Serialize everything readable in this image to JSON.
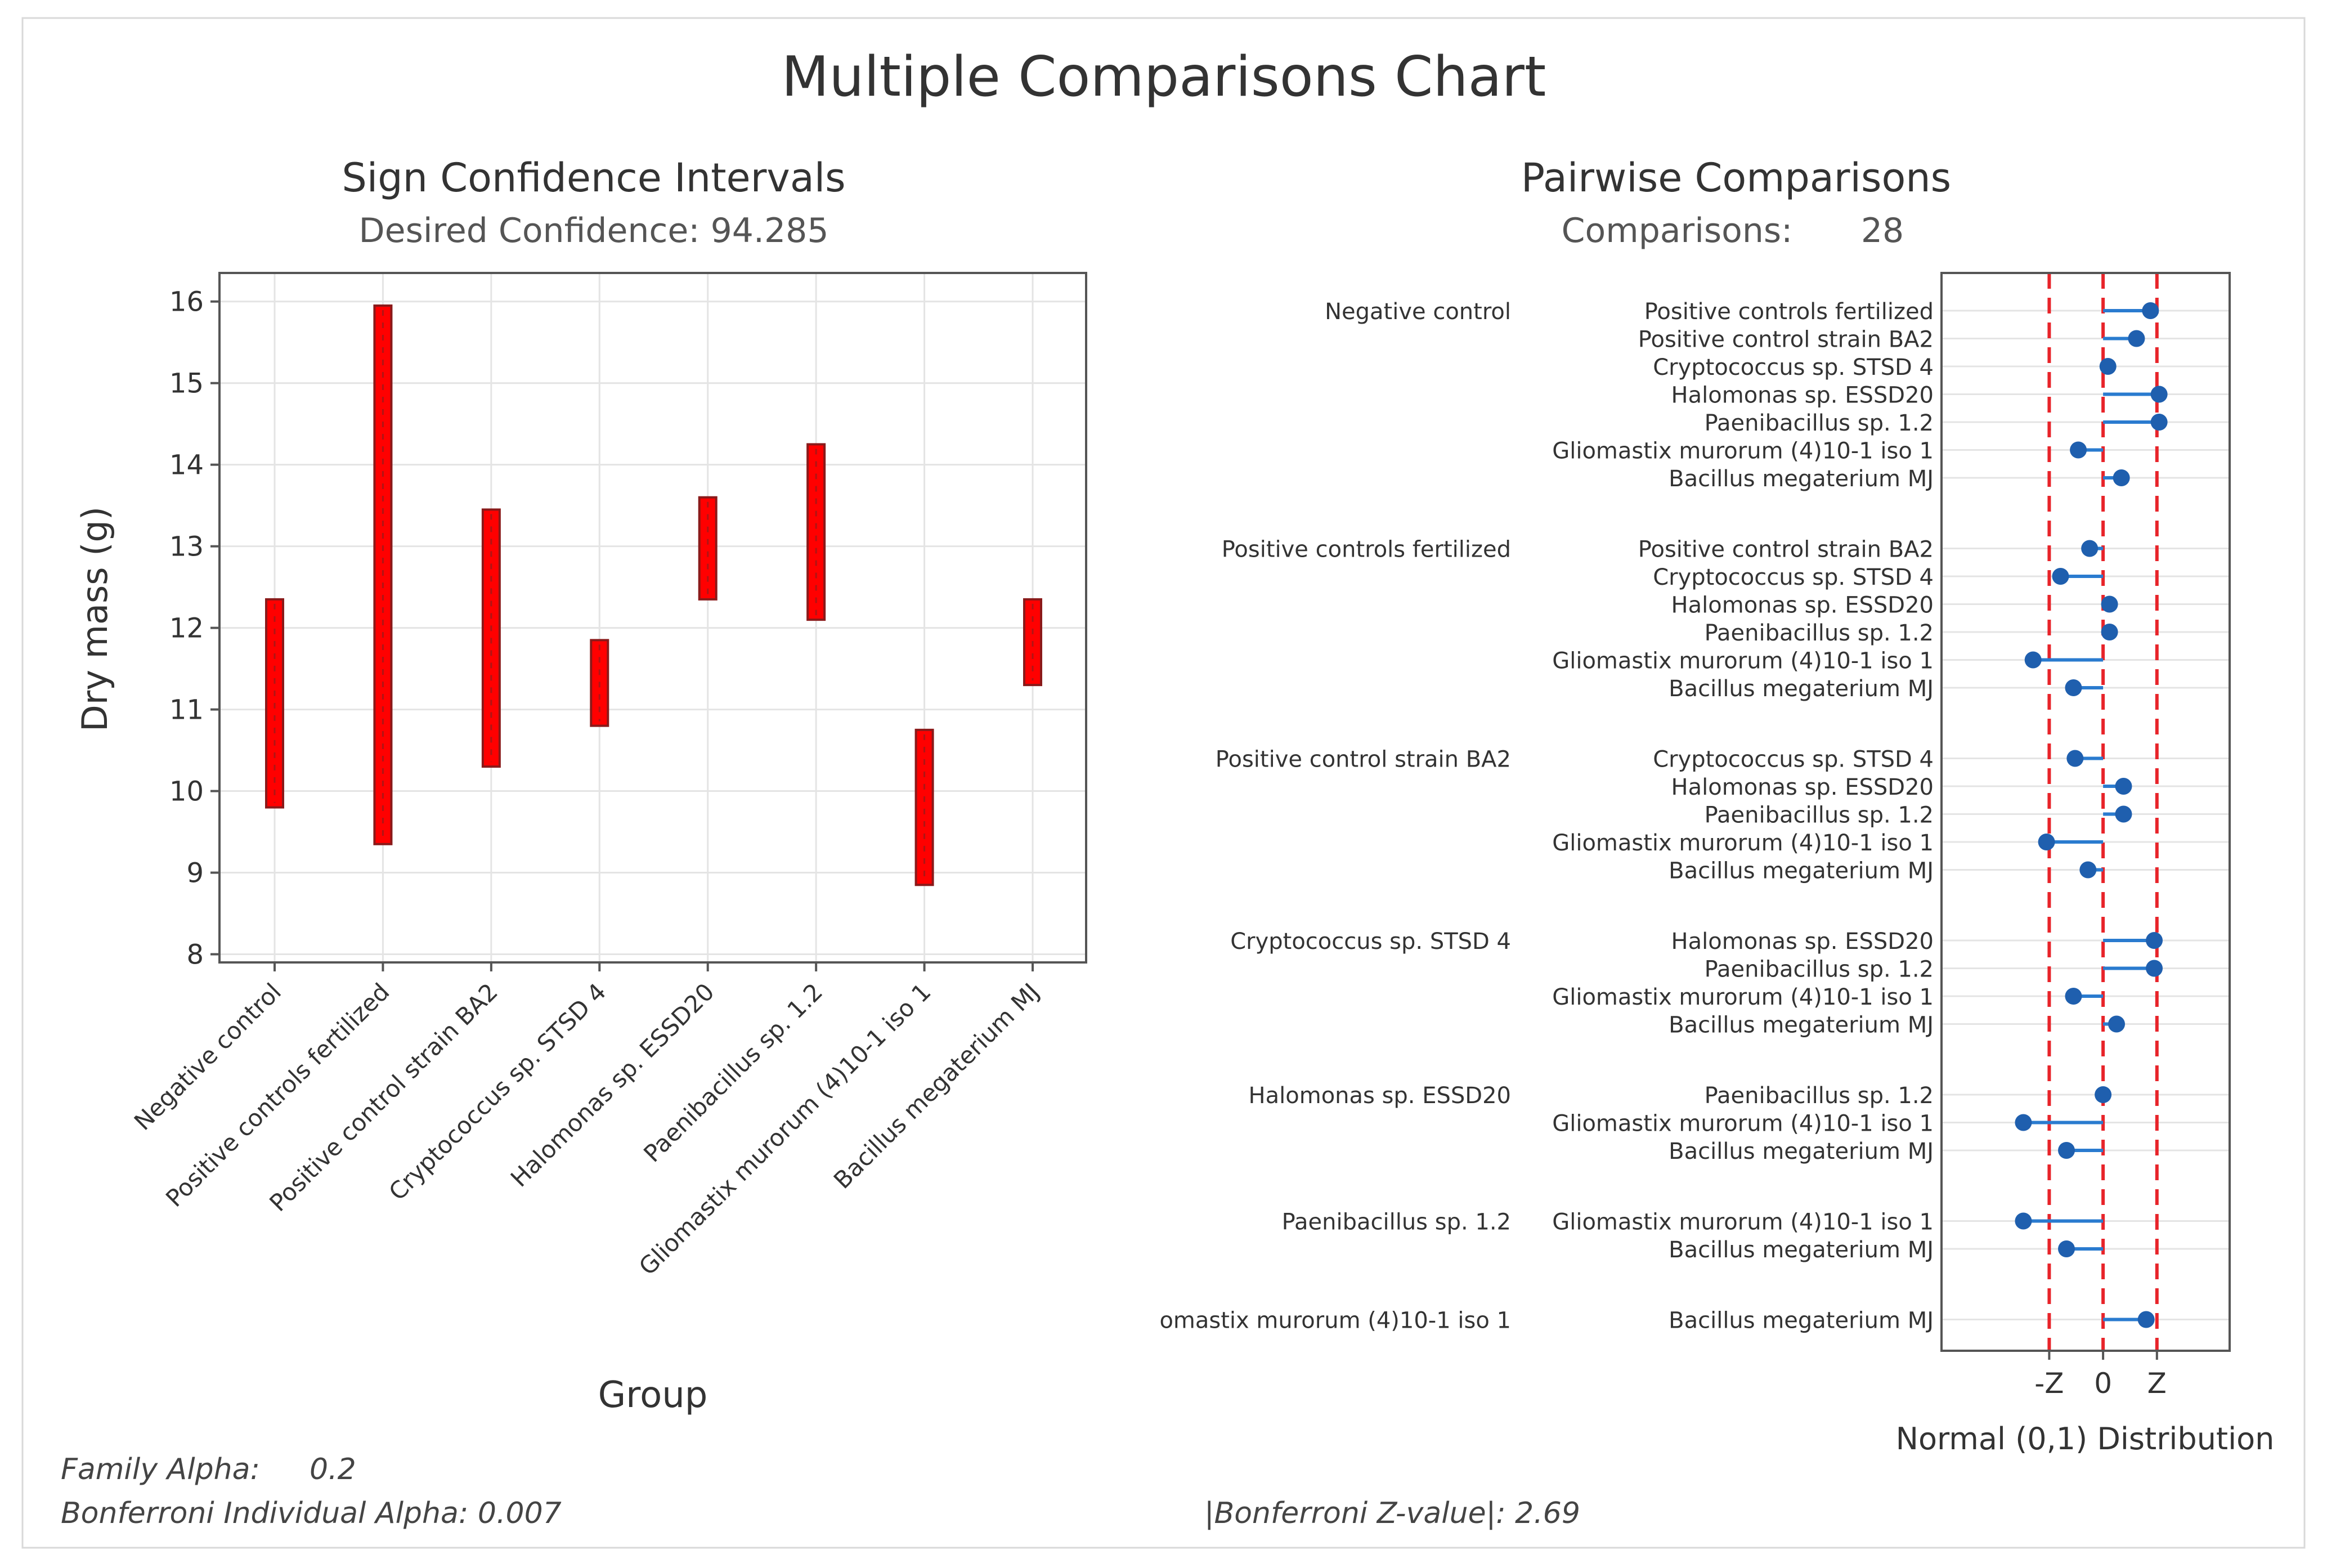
{
  "title": "Multiple Comparisons Chart",
  "colors": {
    "interval_fill": "#ff0000",
    "interval_edge": "#8a1a1a",
    "point": "#1f5fae",
    "line": "#2a7bcf",
    "refline": "#e8242a",
    "text": "#333333"
  },
  "footer": {
    "family_alpha_label": "Family Alpha:",
    "family_alpha_value": "0.2",
    "bonferroni_alpha": "Bonferroni Individual Alpha: 0.007",
    "bonferroni_z": "|Bonferroni Z-value|: 2.69"
  },
  "chart_data": [
    {
      "type": "interval",
      "title": "Sign Confidence Intervals",
      "subtitle": "Desired Confidence: 94.285",
      "xlabel": "Group",
      "ylabel": "Dry mass (g)",
      "ylim": [
        7.9,
        16.35
      ],
      "yticks": [
        8,
        9,
        10,
        11,
        12,
        13,
        14,
        15,
        16
      ],
      "grid": true,
      "categories": [
        "Negative control",
        "Positive controls fertilized",
        "Positive control strain BA2",
        "Cryptococcus sp. STSD 4",
        "Halomonas sp. ESSD20",
        "Paenibacillus sp. 1.2",
        "Gliomastix murorum (4)10-1 iso 1",
        "Bacillus megaterium MJ"
      ],
      "intervals": [
        [
          9.8,
          12.35
        ],
        [
          9.35,
          15.95
        ],
        [
          10.3,
          13.45
        ],
        [
          10.8,
          11.85
        ],
        [
          12.35,
          13.6
        ],
        [
          12.1,
          14.25
        ],
        [
          8.85,
          10.75
        ],
        [
          11.3,
          12.35
        ]
      ]
    },
    {
      "type": "pairwise",
      "title": "Pairwise Comparisons",
      "subtitle_label": "Comparisons:",
      "subtitle_value": "28",
      "xlabel": "Normal (0,1) Distribution",
      "xlim": [
        -3.0,
        2.35
      ],
      "xticks": [
        {
          "value": -1,
          "label": "-Z"
        },
        {
          "value": 0,
          "label": "0"
        },
        {
          "value": 1,
          "label": "Z"
        }
      ],
      "ref_lines": [
        -1,
        0,
        1
      ],
      "groups": [
        {
          "label": "Negative control",
          "comparisons": [
            {
              "label": "Positive controls fertilized",
              "value": 0.88
            },
            {
              "label": "Positive control strain BA2",
              "value": 0.62
            },
            {
              "label": "Cryptococcus sp. STSD 4",
              "value": 0.09
            },
            {
              "label": "Halomonas sp. ESSD20",
              "value": 1.04
            },
            {
              "label": "Paenibacillus sp. 1.2",
              "value": 1.04
            },
            {
              "label": "Gliomastix murorum (4)10-1 iso 1",
              "value": -0.46
            },
            {
              "label": "Bacillus megaterium MJ",
              "value": 0.34
            }
          ]
        },
        {
          "label": "Positive controls fertilized",
          "comparisons": [
            {
              "label": "Positive control strain BA2",
              "value": -0.25
            },
            {
              "label": "Cryptococcus sp. STSD 4",
              "value": -0.79
            },
            {
              "label": "Halomonas sp. ESSD20",
              "value": 0.12
            },
            {
              "label": "Paenibacillus sp. 1.2",
              "value": 0.12
            },
            {
              "label": "Gliomastix murorum (4)10-1 iso 1",
              "value": -1.3
            },
            {
              "label": "Bacillus megaterium MJ",
              "value": -0.55
            }
          ]
        },
        {
          "label": "Positive control strain BA2",
          "comparisons": [
            {
              "label": "Cryptococcus sp. STSD 4",
              "value": -0.52
            },
            {
              "label": "Halomonas sp. ESSD20",
              "value": 0.38
            },
            {
              "label": "Paenibacillus sp. 1.2",
              "value": 0.38
            },
            {
              "label": "Gliomastix murorum (4)10-1 iso 1",
              "value": -1.05
            },
            {
              "label": "Bacillus megaterium MJ",
              "value": -0.28
            }
          ]
        },
        {
          "label": "Cryptococcus sp. STSD 4",
          "comparisons": [
            {
              "label": "Halomonas sp. ESSD20",
              "value": 0.95
            },
            {
              "label": "Paenibacillus sp. 1.2",
              "value": 0.95
            },
            {
              "label": "Gliomastix murorum (4)10-1 iso 1",
              "value": -0.55
            },
            {
              "label": "Bacillus megaterium MJ",
              "value": 0.25
            }
          ]
        },
        {
          "label": "Halomonas sp. ESSD20",
          "comparisons": [
            {
              "label": "Paenibacillus sp. 1.2",
              "value": 0.0
            },
            {
              "label": "Gliomastix murorum (4)10-1 iso 1",
              "value": -1.48
            },
            {
              "label": "Bacillus megaterium MJ",
              "value": -0.68
            }
          ]
        },
        {
          "label": "Paenibacillus sp. 1.2",
          "comparisons": [
            {
              "label": "Gliomastix murorum (4)10-1 iso 1",
              "value": -1.48
            },
            {
              "label": "Bacillus megaterium MJ",
              "value": -0.68
            }
          ]
        },
        {
          "label": "omastix murorum (4)10-1 iso 1",
          "comparisons": [
            {
              "label": "Bacillus megaterium MJ",
              "value": 0.8
            }
          ]
        }
      ]
    }
  ]
}
